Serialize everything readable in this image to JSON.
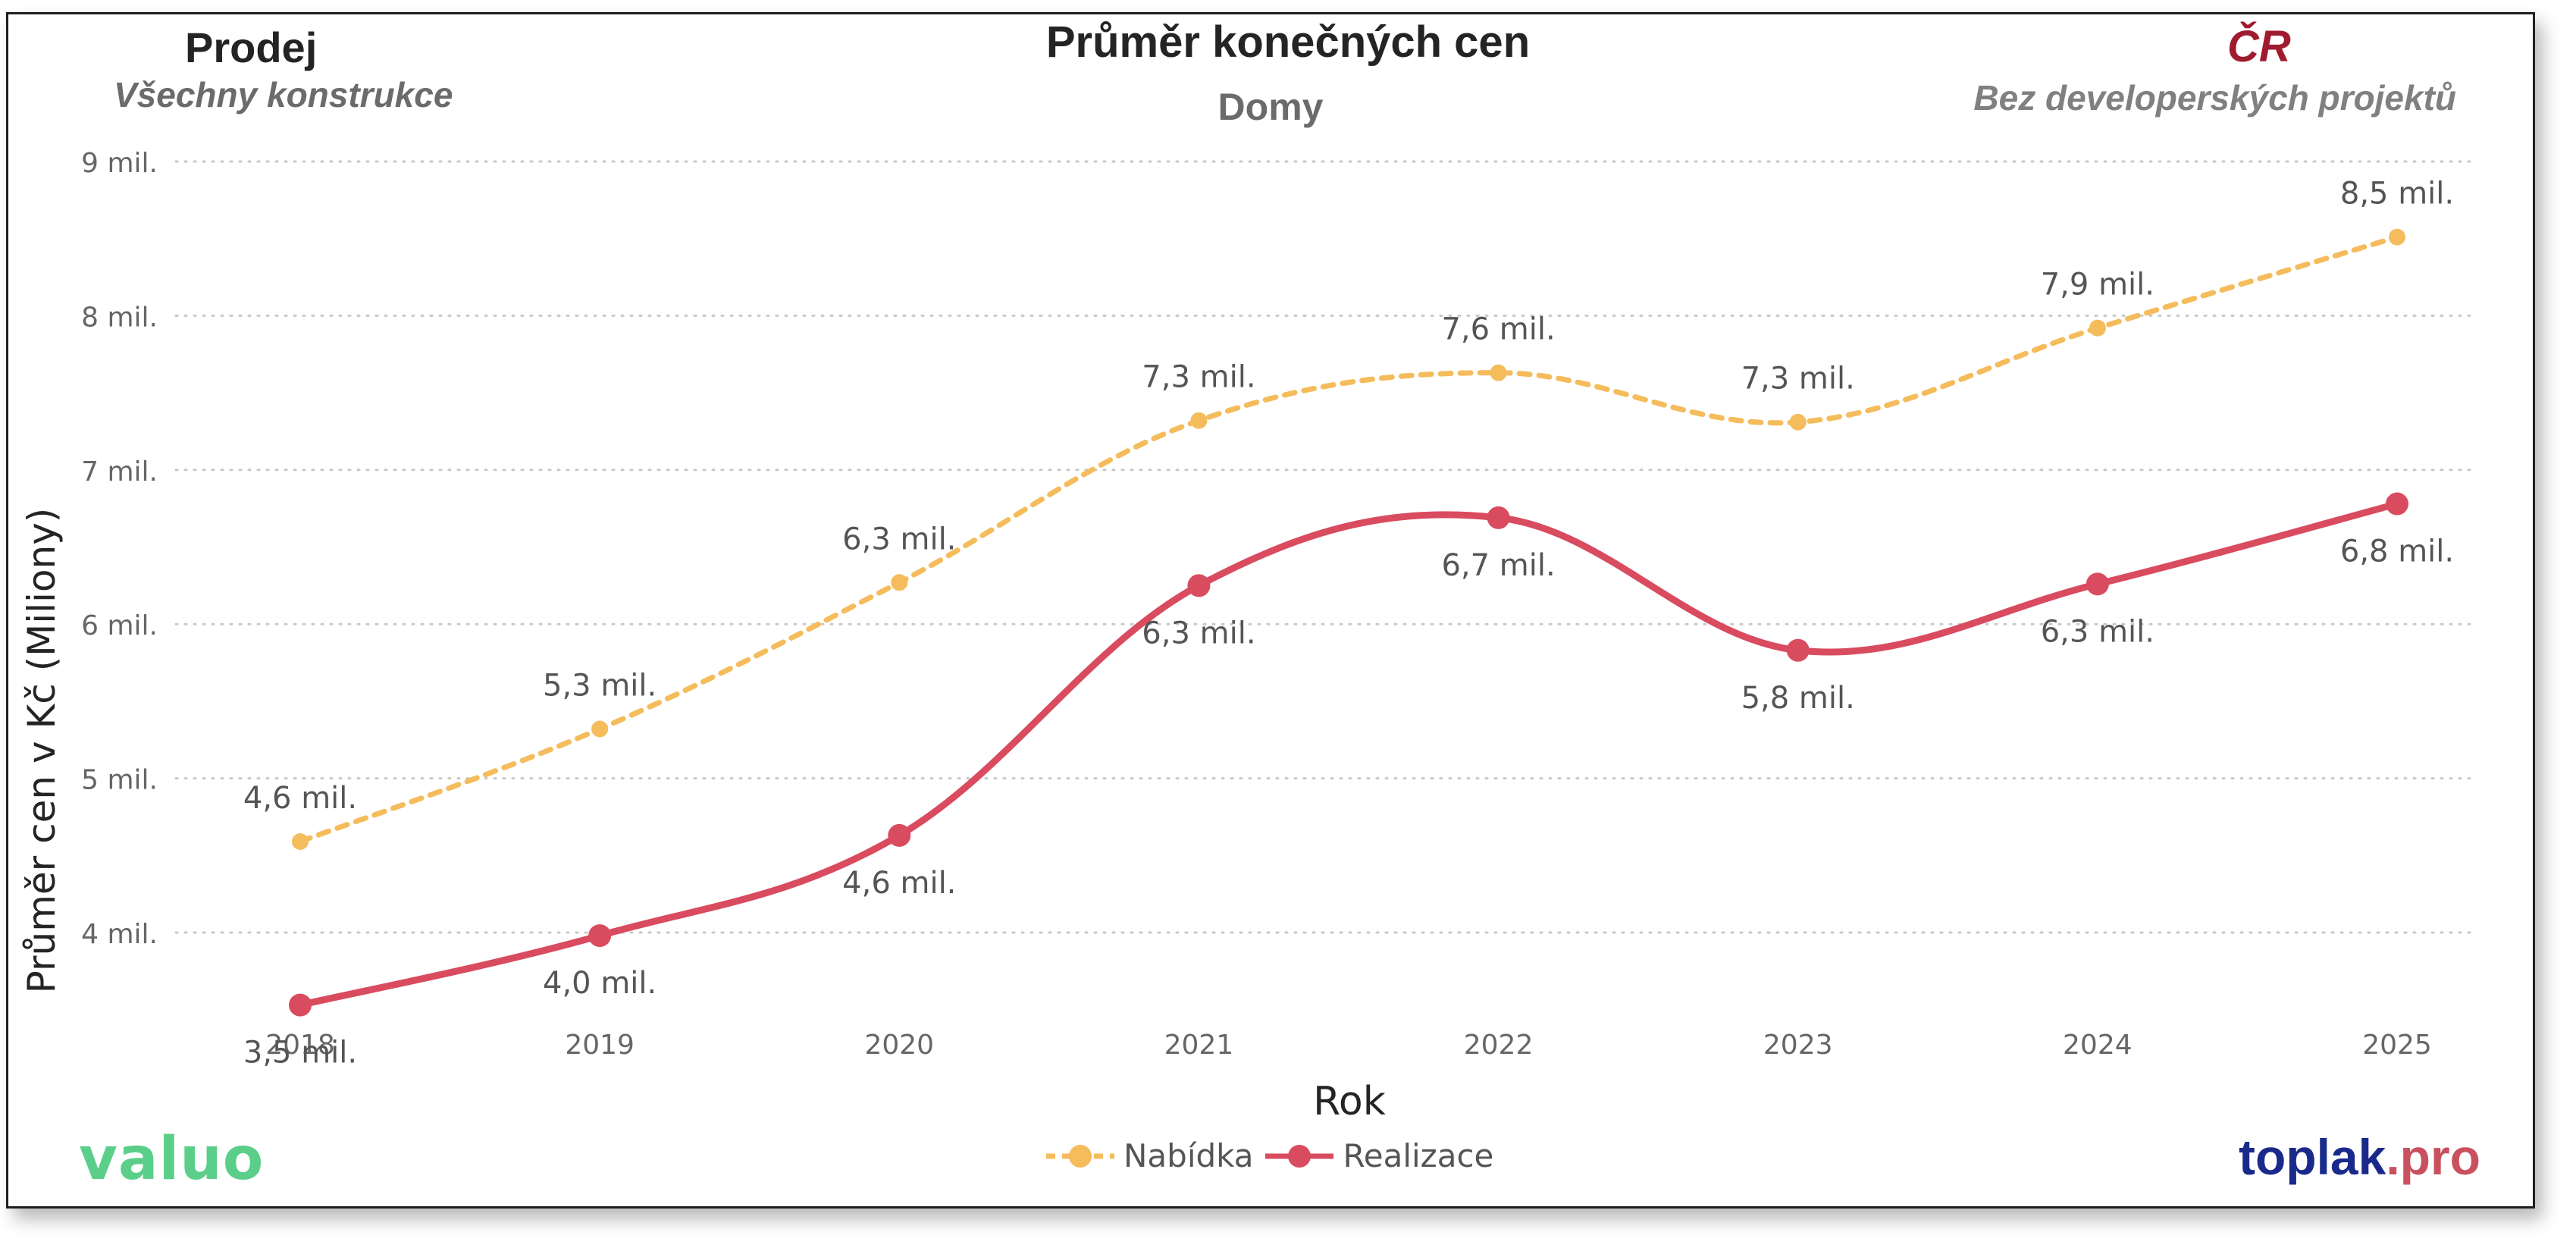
{
  "header": {
    "left_title": "Prodej",
    "left_subtitle": "Všechny konstrukce",
    "center_title": "Průměr konečných cen",
    "center_subtitle": "Domy",
    "right_title": "ČR",
    "right_subtitle": "Bez developerských projektů"
  },
  "logos": {
    "valuo": "valuo",
    "toplak_main": "toplak",
    "toplak_suffix": ".pro"
  },
  "chart_data": {
    "type": "line",
    "xlabel": "Rok",
    "ylabel": "Průměr cen v Kč (Miliony)",
    "x": [
      "2018",
      "2019",
      "2020",
      "2021",
      "2022",
      "2023",
      "2024",
      "2025"
    ],
    "ylim": [
      3.5,
      9.0
    ],
    "yticks": [
      4,
      5,
      6,
      7,
      8,
      9
    ],
    "ytick_labels": [
      "4 mil.",
      "5 mil.",
      "6 mil.",
      "7 mil.",
      "8 mil.",
      "9 mil."
    ],
    "grid": true,
    "legend_position": "bottom-center",
    "series": [
      {
        "name": "Nabídka",
        "color": "#f5bc5c",
        "style": "dashed",
        "values": [
          4.59,
          5.32,
          6.27,
          7.32,
          7.63,
          7.31,
          7.92,
          8.51
        ],
        "labels": [
          "4,6 mil.",
          "5,3 mil.",
          "6,3 mil.",
          "7,3 mil.",
          "7,6 mil.",
          "7,3 mil.",
          "7,9 mil.",
          "8,5 mil."
        ],
        "label_position": "above"
      },
      {
        "name": "Realizace",
        "color": "#d94b5f",
        "style": "solid",
        "values": [
          3.53,
          3.98,
          4.63,
          6.25,
          6.69,
          5.83,
          6.26,
          6.78
        ],
        "labels": [
          "3,5 mil.",
          "4,0 mil.",
          "4,6 mil.",
          "6,3 mil.",
          "6,7 mil.",
          "5,8 mil.",
          "6,3 mil.",
          "6,8 mil."
        ],
        "label_position": "below"
      }
    ]
  }
}
